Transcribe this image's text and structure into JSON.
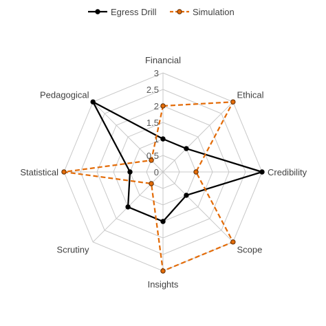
{
  "chart_data": {
    "type": "radar",
    "categories": [
      "Financial",
      "Ethical",
      "Credibility",
      "Scope",
      "Insights",
      "Scrutiny",
      "Statistical",
      "Pedagogical"
    ],
    "series": [
      {
        "name": "Egress Drill",
        "values": [
          1,
          1,
          3,
          1,
          1.5,
          1.5,
          1,
          3
        ],
        "color": "#000000",
        "line": "solid"
      },
      {
        "name": "Simulation",
        "values": [
          2,
          3,
          1,
          3,
          3,
          0.5,
          3,
          0.5
        ],
        "color": "#E36C09",
        "line": "dashed"
      }
    ],
    "rlim": [
      0,
      3
    ],
    "ticks": [
      "0",
      "0.5",
      "1",
      "1.5",
      "2",
      "2.5",
      "3"
    ],
    "tick_values": [
      0,
      0.5,
      1,
      1.5,
      2,
      2.5,
      3
    ],
    "grid": true,
    "legend_position": "top"
  }
}
